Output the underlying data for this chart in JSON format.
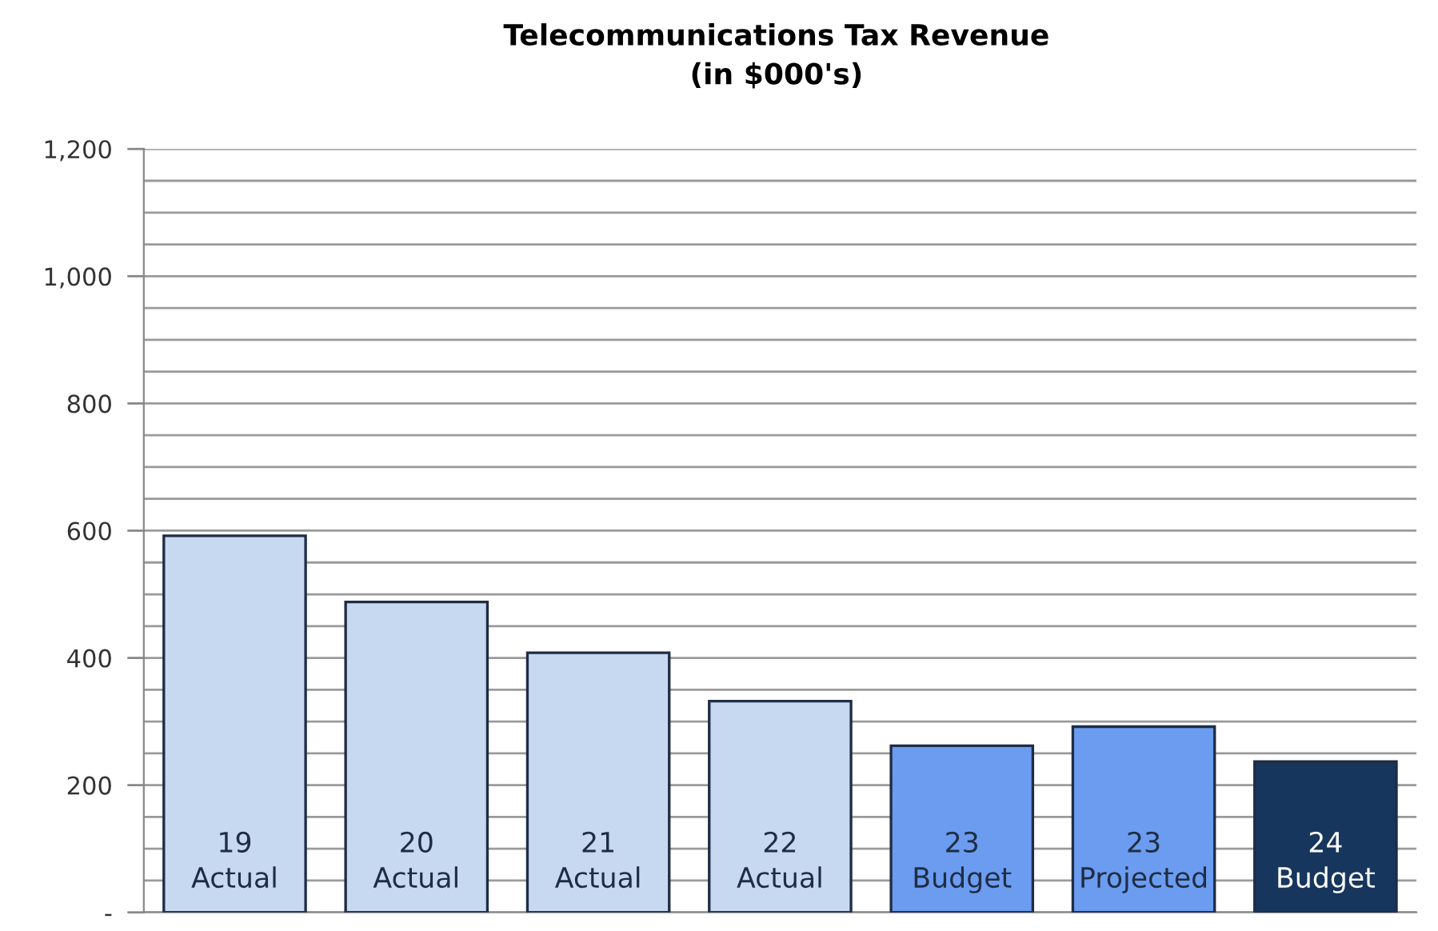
{
  "chart_data": {
    "type": "bar",
    "title": "Telecommunications Tax Revenue\n(in $000's)",
    "categories": [
      "19\nActual",
      "20\nActual",
      "21\nActual",
      "22\nActual",
      "23\nBudget",
      "23\nProjected",
      "24\nBudget"
    ],
    "values": [
      592,
      488,
      408,
      332,
      262,
      292,
      237
    ],
    "colors": [
      "#c6d9f1",
      "#c6d9f1",
      "#c6d9f1",
      "#c6d9f1",
      "#6b9cf0",
      "#6b9cf0",
      "#17365d"
    ],
    "ylim": [
      0,
      1200
    ],
    "yticks": [
      {
        "value": 0,
        "label": "-"
      },
      {
        "value": 50,
        "label": null
      },
      {
        "value": 100,
        "label": null
      },
      {
        "value": 150,
        "label": null
      },
      200,
      {
        "value": 250,
        "label": null
      },
      {
        "value": 300,
        "label": null
      },
      {
        "value": 350,
        "label": null
      },
      {
        "value": 400,
        "label": "400"
      },
      {
        "value": 450,
        "label": null
      },
      {
        "value": 500,
        "label": null
      },
      {
        "value": 550,
        "label": null
      },
      {
        "value": 600,
        "label": "600"
      },
      {
        "value": 650,
        "label": null
      },
      {
        "value": 700,
        "label": null
      },
      {
        "value": 750,
        "label": null
      },
      {
        "value": 800,
        "label": "800"
      },
      {
        "value": 850,
        "label": null
      },
      {
        "value": 900,
        "label": null
      },
      {
        "value": 950,
        "label": null
      },
      {
        "value": 1000,
        "label": "1,000"
      },
      {
        "value": 1050,
        "label": null
      },
      {
        "value": 1100,
        "label": null
      },
      {
        "value": 1150,
        "label": null
      },
      {
        "value": 1200,
        "label": "1,200"
      }
    ],
    "grid": "y"
  }
}
